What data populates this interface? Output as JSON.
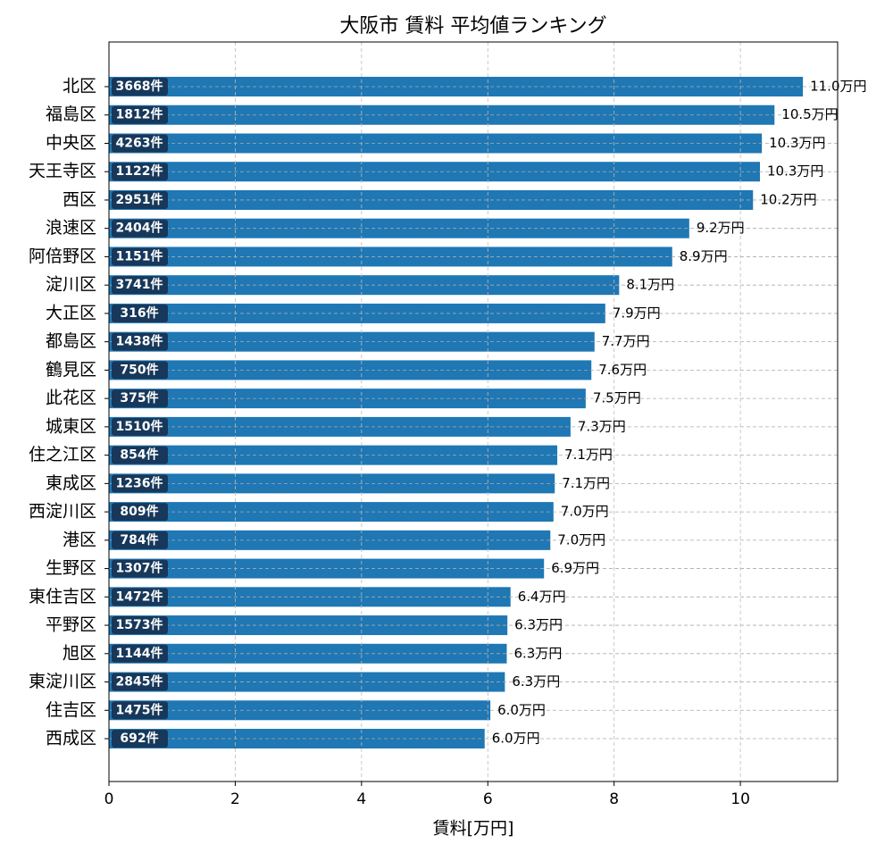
{
  "chart_data": {
    "type": "barh",
    "title": "大阪市 賃料 平均値ランキング",
    "x_label": "賃料[万円]",
    "categories": [
      "北区",
      "福島区",
      "中央区",
      "天王寺区",
      "西区",
      "浪速区",
      "阿倍野区",
      "淀川区",
      "大正区",
      "都島区",
      "鶴見区",
      "此花区",
      "城東区",
      "住之江区",
      "東成区",
      "西淀川区",
      "港区",
      "生野区",
      "東住吉区",
      "平野区",
      "旭区",
      "東淀川区",
      "住吉区",
      "西成区"
    ],
    "values": [
      10.99,
      10.54,
      10.34,
      10.31,
      10.2,
      9.19,
      8.92,
      8.08,
      7.86,
      7.69,
      7.64,
      7.55,
      7.31,
      7.1,
      7.06,
      7.04,
      6.99,
      6.89,
      6.36,
      6.31,
      6.3,
      6.27,
      6.04,
      5.95
    ],
    "value_labels": [
      "11.0万円",
      "10.5万円",
      "10.3万円",
      "10.3万円",
      "10.2万円",
      "9.2万円",
      "8.9万円",
      "8.1万円",
      "7.9万円",
      "7.7万円",
      "7.6万円",
      "7.5万円",
      "7.3万円",
      "7.1万円",
      "7.1万円",
      "7.0万円",
      "7.0万円",
      "6.9万円",
      "6.4万円",
      "6.3万円",
      "6.3万円",
      "6.3万円",
      "6.0万円",
      "6.0万円"
    ],
    "count_labels": [
      "3668件",
      "1812件",
      "4263件",
      "1122件",
      "2951件",
      "2404件",
      "1151件",
      "3741件",
      "316件",
      "1438件",
      "750件",
      "375件",
      "1510件",
      "854件",
      "1236件",
      "809件",
      "784件",
      "1307件",
      "1472件",
      "1573件",
      "1144件",
      "2845件",
      "1475件",
      "692件"
    ],
    "color": "#1f77b4",
    "count_box_color": "#17385a",
    "xlim": [
      0,
      11.54
    ],
    "xticks": [
      0,
      2,
      4,
      6,
      8,
      10
    ],
    "grid": true
  }
}
